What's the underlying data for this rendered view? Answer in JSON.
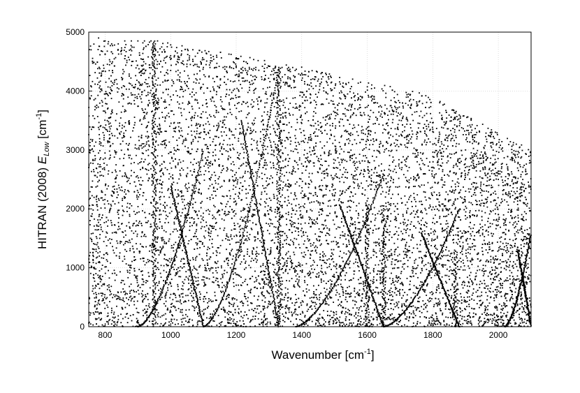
{
  "chart_data": {
    "type": "scatter",
    "title": "",
    "xlabel": "Wavenumber [cm",
    "xlabel_sup": "-1",
    "xlabel_suffix": "]",
    "ylabel_prefix": "HITRAN (2008) ",
    "ylabel_italic": "E",
    "ylabel_sub": "Low",
    "ylabel_unit_prefix": "  [cm",
    "ylabel_sup": "-1",
    "ylabel_suffix": "]",
    "xlim": [
      750,
      2100
    ],
    "ylim": [
      0,
      5000
    ],
    "x_ticks": [
      800,
      1000,
      1200,
      1400,
      1600,
      1800,
      2000
    ],
    "y_ticks": [
      0,
      1000,
      2000,
      3000,
      4000,
      5000
    ],
    "grid": true,
    "marker_color": "#000000",
    "series": [
      {
        "values_note": "",
        "x": [
          960,
          960,
          960,
          960,
          960,
          960,
          960,
          960,
          960,
          960,
          960,
          960,
          960,
          960,
          960,
          1330,
          1330,
          1330,
          1330,
          1330,
          1330,
          1330,
          1330,
          1600,
          1600,
          1600,
          1600,
          1600,
          1600,
          1600,
          1600,
          1650,
          1650,
          1650,
          1650,
          1650,
          1650,
          1650,
          1650,
          780,
          800,
          820,
          840,
          860,
          880,
          900,
          920,
          940,
          980,
          1000,
          1020,
          1040,
          1060,
          1080,
          1100,
          1120,
          1140,
          1160,
          1180,
          1200,
          1220,
          1240,
          1260,
          1280,
          1300,
          1320,
          1340,
          1360,
          1380,
          1400,
          1420,
          1440,
          1460,
          1480,
          1500,
          1520,
          1540,
          1560,
          1580,
          1620,
          1640,
          1660,
          1680,
          1700,
          1720,
          1740,
          1760,
          1780,
          1800,
          1820,
          1840,
          1860,
          1880,
          1900,
          1920,
          1940,
          1960,
          1980,
          2000,
          2020,
          2040,
          2060,
          2080
        ],
        "y": [
          4850,
          4500,
          4100,
          3700,
          3300,
          2900,
          2500,
          2100,
          1700,
          1300,
          1000,
          700,
          400,
          200,
          50,
          4400,
          4000,
          3600,
          3200,
          2800,
          2400,
          2000,
          1600,
          2000,
          1800,
          1600,
          1400,
          1200,
          1000,
          800,
          600,
          2000,
          1800,
          1600,
          1400,
          1200,
          1000,
          800,
          600,
          4900,
          4850,
          4800,
          4800,
          4850,
          4850,
          4850,
          4850,
          4850,
          4700,
          4600,
          4500,
          4450,
          4450,
          4450,
          4400,
          4400,
          4400,
          4400,
          4400,
          4400,
          4400,
          4400,
          4400,
          4420,
          4420,
          4420,
          4400,
          4400,
          4350,
          4300,
          4250,
          4200,
          4150,
          4100,
          4050,
          4000,
          3950,
          3900,
          3850,
          3800,
          3750,
          3700,
          3650,
          3600,
          3550,
          3500,
          3450,
          3400,
          3350,
          3300,
          3250,
          3200,
          3100,
          3000,
          2900,
          2800,
          2700,
          2600,
          2500,
          2400,
          2300,
          2200,
          2100
        ]
      }
    ]
  }
}
